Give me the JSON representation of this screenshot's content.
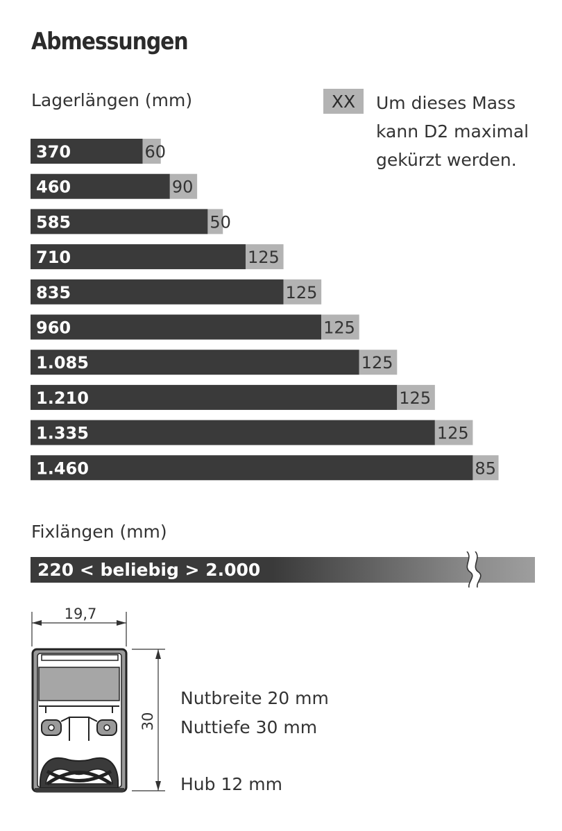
{
  "title": "Abmessungen",
  "lager_label": "Lagerlängen (mm)",
  "legend": {
    "box": "XX",
    "text": "Um dieses Mass kann D2 maximal gekürzt werden."
  },
  "fix_label": "Fixlängen (mm)",
  "fix_bar_text": "220 < beliebig > 2.000",
  "profile": {
    "width_dim": "19,7",
    "height_dim": "30"
  },
  "specs": {
    "nutbreite": "Nutbreite 20 mm",
    "nuttiefe": "Nuttiefe 30 mm",
    "hub": "Hub 12 mm"
  },
  "colors": {
    "dark_bar": "#3a3a3a",
    "gray_bar": "#b3b3b3"
  },
  "chart_data": {
    "type": "bar",
    "orientation": "horizontal",
    "stacked": true,
    "categories": [
      "370",
      "460",
      "585",
      "710",
      "835",
      "960",
      "1.085",
      "1.210",
      "1.335",
      "1.460"
    ],
    "series": [
      {
        "values": [
          370,
          460,
          585,
          710,
          835,
          960,
          1085,
          1210,
          1335,
          1460
        ]
      },
      {
        "values": [
          60,
          90,
          50,
          125,
          125,
          125,
          125,
          125,
          125,
          85
        ]
      }
    ],
    "segment_labels": [
      "60",
      "90",
      "50",
      "125",
      "125",
      "125",
      "125",
      "125",
      "125",
      "85"
    ],
    "title": "Lagerlängen (mm)"
  }
}
